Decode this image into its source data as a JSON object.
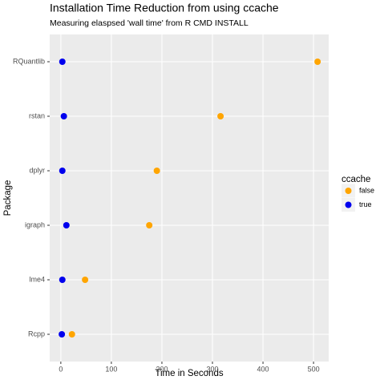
{
  "chart_data": {
    "type": "dot",
    "title": "Installation Time Reduction from using ccache",
    "subtitle": "Measuring elaspsed 'wall time' from R CMD INSTALL",
    "x_label": "Time in Seconds",
    "y_label": "Package",
    "categories": [
      "RQuantlib",
      "rstan",
      "dplyr",
      "igraph",
      "lme4",
      "Rcpp"
    ],
    "legend_title": "ccache",
    "series": [
      {
        "name": "false",
        "color": "#FFA500",
        "values": [
          508,
          316,
          190,
          175,
          48,
          22
        ]
      },
      {
        "name": "true",
        "color": "#0000EE",
        "values": [
          3,
          6,
          3,
          11,
          3,
          2
        ]
      }
    ],
    "xlim": [
      -22,
      530
    ],
    "xticks": [
      0,
      100,
      200,
      300,
      400,
      500
    ],
    "grid": true,
    "legend_position": "right"
  }
}
